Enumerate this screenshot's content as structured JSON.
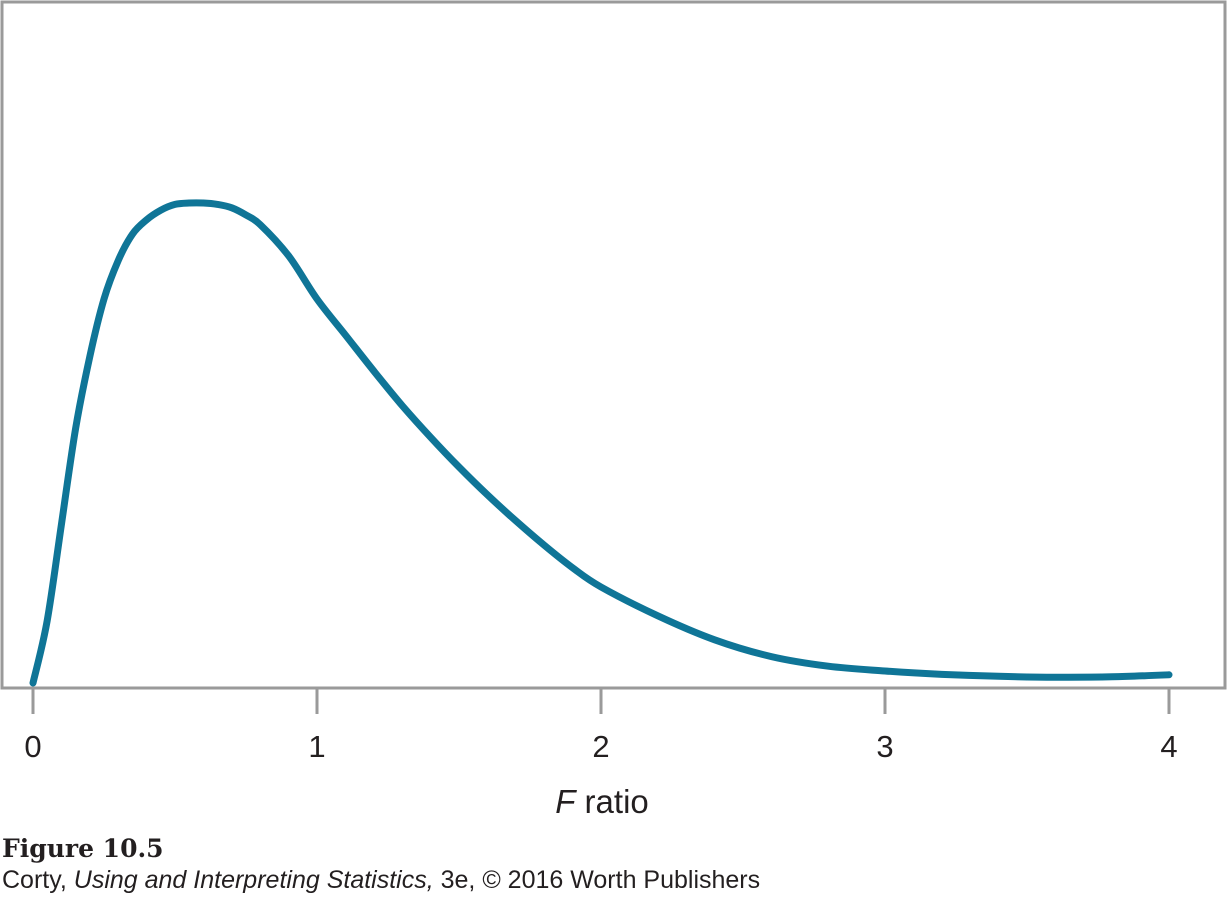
{
  "chart_data": {
    "type": "line",
    "title": "",
    "xlabel_italic": "F",
    "xlabel_rest": " ratio",
    "ylabel": "",
    "xlim": [
      0,
      4
    ],
    "x_ticks": [
      "0",
      "1",
      "2",
      "3",
      "4"
    ],
    "y_axis_shown": false,
    "grid": false,
    "series": [
      {
        "color": "#0f7597",
        "x": [
          0,
          0.05,
          0.1,
          0.15,
          0.2,
          0.25,
          0.3,
          0.35,
          0.4,
          0.45,
          0.5,
          0.55,
          0.6,
          0.65,
          0.7,
          0.75,
          0.8,
          0.9,
          1.0,
          1.1,
          1.2,
          1.3,
          1.4,
          1.5,
          1.6,
          1.7,
          1.8,
          1.9,
          2.0,
          2.2,
          2.4,
          2.6,
          2.8,
          3.0,
          3.2,
          3.4,
          3.6,
          3.8,
          4.0
        ],
        "y": [
          0.0,
          0.13,
          0.33,
          0.53,
          0.68,
          0.8,
          0.88,
          0.935,
          0.965,
          0.985,
          0.997,
          1.0,
          1.0,
          0.997,
          0.99,
          0.975,
          0.955,
          0.89,
          0.8,
          0.725,
          0.65,
          0.578,
          0.512,
          0.45,
          0.392,
          0.338,
          0.287,
          0.24,
          0.2,
          0.14,
          0.09,
          0.055,
          0.035,
          0.025,
          0.018,
          0.014,
          0.012,
          0.013,
          0.017
        ]
      }
    ]
  },
  "caption": {
    "figure_label": "Figure 10.5",
    "source_prefix": "Corty, ",
    "source_title": "Using and Interpreting Statistics,",
    "source_suffix": " 3e, © 2016 Worth Publishers"
  }
}
